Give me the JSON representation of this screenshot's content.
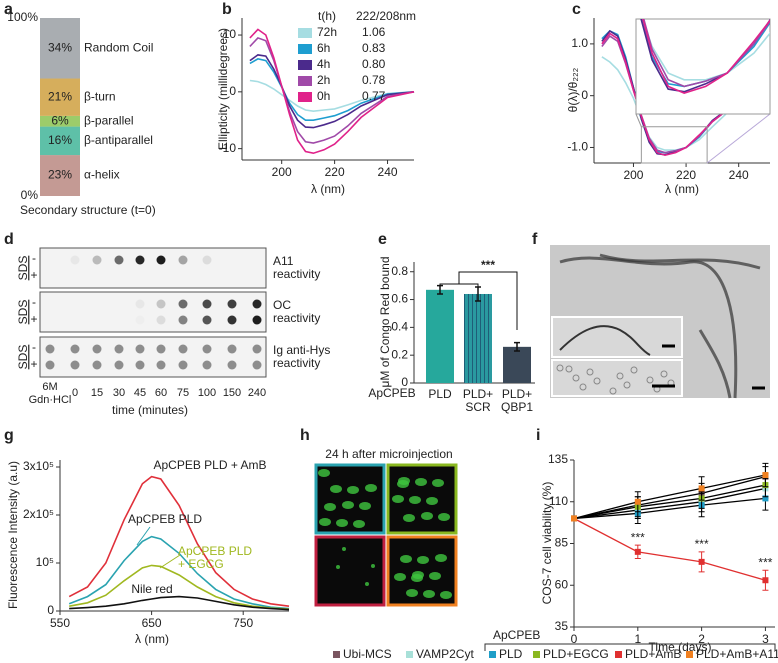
{
  "panel_labels": [
    "a",
    "b",
    "c",
    "d",
    "e",
    "f",
    "g",
    "h",
    "i"
  ],
  "chart_data": [
    {
      "type": "stacked_bar",
      "xlabel": "Secondary structure (t=0)",
      "categories": [
        null
      ],
      "ylim": [
        0,
        100
      ],
      "yticks": [
        {
          "value": 0,
          "label": "0%"
        },
        {
          "value": 100,
          "label": "100%"
        }
      ],
      "series": [
        {
          "name": "α-helix",
          "color": "#c49a94",
          "values": [
            23
          ],
          "value_labels": [
            "23%"
          ]
        },
        {
          "name": "β-antiparallel",
          "color": "#5ec0a8",
          "values": [
            16
          ],
          "value_labels": [
            "16%"
          ]
        },
        {
          "name": "β-parallel",
          "color": "#9ccc6a",
          "values": [
            6
          ],
          "value_labels": [
            "6%"
          ]
        },
        {
          "name": "β-turn",
          "color": "#d6ae5c",
          "values": [
            21
          ],
          "value_labels": [
            "21%"
          ]
        },
        {
          "name": "Random Coil",
          "color": "#a9adb1",
          "values": [
            34
          ],
          "value_labels": [
            "34%"
          ]
        }
      ]
    },
    {
      "type": "line",
      "xlabel": "λ (nm)",
      "ylabel": "Ellipticity (millidegrees)",
      "legend_title": "t(h)",
      "legend_value_title": "222/208nm",
      "x": [
        188,
        191,
        194,
        197,
        200,
        203,
        206,
        209,
        212,
        216,
        220,
        225,
        230,
        240,
        250
      ],
      "xlim": [
        185,
        250
      ],
      "xticks": [
        200,
        220,
        240
      ],
      "ylim": [
        -12,
        13
      ],
      "yticks": [
        -10,
        0,
        10
      ],
      "series": [
        {
          "name": "72h",
          "color": "#a6dde2",
          "ratio": "1.06",
          "values": [
            2,
            1.8,
            1.3,
            0.5,
            -0.5,
            -1.5,
            -2.5,
            -3.2,
            -3.4,
            -3.2,
            -3,
            -2.3,
            -1.5,
            -0.3,
            0
          ]
        },
        {
          "name": "6h",
          "color": "#1e9ed0",
          "ratio": "0.83",
          "values": [
            5,
            5.8,
            5.5,
            3.5,
            0.8,
            -2,
            -4,
            -5,
            -5,
            -4.6,
            -4.2,
            -3.3,
            -2,
            -0.4,
            0
          ]
        },
        {
          "name": "4h",
          "color": "#4b2a8c",
          "ratio": "0.80",
          "values": [
            5.5,
            6.5,
            6.3,
            4,
            1,
            -2.5,
            -5,
            -6.2,
            -6.3,
            -5.8,
            -5.2,
            -4,
            -2.5,
            -0.5,
            0
          ]
        },
        {
          "name": "2h",
          "color": "#a04aa8",
          "ratio": "0.78",
          "values": [
            8,
            9.5,
            9,
            5.5,
            1,
            -3.5,
            -7,
            -8.8,
            -9,
            -8.5,
            -7.8,
            -6,
            -3.8,
            -0.8,
            0
          ]
        },
        {
          "name": "0h",
          "color": "#e0228a",
          "ratio": "0.77",
          "values": [
            9.5,
            11,
            10,
            6,
            1,
            -4,
            -8.5,
            -10.5,
            -10.8,
            -10.2,
            -9.2,
            -7,
            -4.5,
            -1,
            0
          ]
        }
      ]
    },
    {
      "type": "line_inset",
      "xlabel": "λ (nm)",
      "ylabel": "θ(λ)/θ₂₂₂",
      "x": [
        188,
        191,
        194,
        197,
        200,
        203,
        206,
        209,
        212,
        216,
        220,
        225,
        230,
        240,
        250
      ],
      "xlim": [
        185,
        250
      ],
      "xticks": [
        200,
        220,
        240
      ],
      "ylim": [
        -1.3,
        1.5
      ],
      "yticks": [
        {
          "value": -1,
          "label": "-1.0"
        },
        0,
        {
          "value": 1,
          "label": "1.0"
        }
      ],
      "series": [
        {
          "color": "#a6dde2",
          "values": [
            0.75,
            0.65,
            0.5,
            0.25,
            -0.05,
            -0.45,
            -0.8,
            -1.0,
            -1.05,
            -1.05,
            -1.0,
            -0.85,
            -0.6,
            -0.12,
            0
          ]
        },
        {
          "color": "#1e9ed0",
          "values": [
            1.1,
            1.25,
            1.18,
            0.75,
            0.15,
            -0.45,
            -0.88,
            -1.08,
            -1.1,
            -1.06,
            -1.0,
            -0.8,
            -0.5,
            -0.1,
            0
          ]
        },
        {
          "color": "#4b2a8c",
          "values": [
            1.05,
            1.25,
            1.15,
            0.7,
            0.15,
            -0.45,
            -0.9,
            -1.12,
            -1.14,
            -1.08,
            -1.0,
            -0.78,
            -0.48,
            -0.1,
            0
          ]
        },
        {
          "color": "#a04aa8",
          "values": [
            0.95,
            1.15,
            1.05,
            0.62,
            0.1,
            -0.38,
            -0.82,
            -1.05,
            -1.1,
            -1.06,
            -1.0,
            -0.78,
            -0.5,
            -0.1,
            0
          ]
        },
        {
          "color": "#e0228a",
          "values": [
            1.0,
            1.2,
            1.1,
            0.65,
            0.1,
            -0.4,
            -0.85,
            -1.1,
            -1.15,
            -1.1,
            -1.0,
            -0.76,
            -0.5,
            -0.1,
            0
          ]
        }
      ]
    },
    {
      "type": "bar",
      "ylabel": "μM of Congo Red bound",
      "group_label": "ApCPEB",
      "categories": [
        "PLD",
        "PLD+\nSCR",
        "PLD+\nQBP1"
      ],
      "values": [
        0.67,
        0.64,
        0.26
      ],
      "errors": [
        0.03,
        0.05,
        0.03
      ],
      "colors": [
        "#26a89c",
        "#2a9aa0",
        "#3a4858"
      ],
      "hatch": [
        false,
        true,
        false
      ],
      "ylim": [
        0,
        0.87
      ],
      "yticks": [
        0,
        0.2,
        0.4,
        0.6,
        0.8
      ],
      "annotation": "***"
    },
    {
      "type": "line",
      "xlabel": "λ (nm)",
      "ylabel": "Fluorescence Intensity (a.u)",
      "x": [
        560,
        580,
        600,
        620,
        640,
        650,
        660,
        680,
        700,
        720,
        740,
        760,
        780,
        800
      ],
      "xlim": [
        550,
        800
      ],
      "xticks": [
        550,
        650,
        750
      ],
      "ylim": [
        0,
        300000
      ],
      "yticks": [
        0,
        {
          "value": 100000,
          "label": "10⁵"
        },
        {
          "value": 200000,
          "label": "2x10⁵"
        },
        {
          "value": 300000,
          "label": "3x10⁵"
        }
      ],
      "series": [
        {
          "name": "ApCPEB PLD + AmB",
          "color": "#e0303a",
          "values": [
            30000,
            50000,
            100000,
            190000,
            265000,
            280000,
            275000,
            220000,
            140000,
            80000,
            45000,
            25000,
            15000,
            10000
          ]
        },
        {
          "name": "ApCPEB PLD",
          "color": "#2aa3b0",
          "values": [
            15000,
            30000,
            55000,
            105000,
            145000,
            155000,
            150000,
            120000,
            78000,
            45000,
            25000,
            15000,
            8000,
            5000
          ]
        },
        {
          "name": "ApCPEB PLD\n+ EGCG",
          "color": "#a0b820",
          "values": [
            10000,
            17000,
            33000,
            63000,
            90000,
            95000,
            93000,
            75000,
            50000,
            30000,
            17000,
            10000,
            6000,
            4000
          ]
        },
        {
          "name": "Nile red",
          "color": "#111111",
          "values": [
            5000,
            7000,
            10000,
            15000,
            22000,
            25000,
            28000,
            30000,
            27000,
            20000,
            13000,
            8000,
            5000,
            3000
          ]
        }
      ]
    },
    {
      "type": "line_errors",
      "xlabel": "Time (days)",
      "ylabel": "COS-7 cell viability (%)",
      "x": [
        0,
        1,
        2,
        3
      ],
      "xlim": [
        0,
        3.15
      ],
      "xticks": [
        0,
        1,
        2,
        3
      ],
      "ylim": [
        35,
        135
      ],
      "yticks": [
        35,
        60,
        85,
        110,
        135
      ],
      "series": [
        {
          "name": "Ubi-MCS",
          "color": "#7a5560",
          "line_color": "#000000",
          "values": [
            100,
            108,
            115,
            125
          ],
          "errors": [
            0,
            5,
            6,
            6
          ]
        },
        {
          "name": "VAMP2Cyt",
          "color": "#a8e0d8",
          "line_color": "#000000",
          "values": [
            100,
            105,
            110,
            118
          ],
          "errors": [
            0,
            5,
            6,
            6
          ]
        },
        {
          "name": "PLD",
          "group": "ApCPEB",
          "color": "#1e9ec8",
          "line_color": "#000000",
          "values": [
            100,
            103,
            108,
            112
          ],
          "errors": [
            0,
            6,
            7,
            7
          ]
        },
        {
          "name": "PLD+EGCG",
          "group": "ApCPEB",
          "color": "#8ab820",
          "line_color": "#000000",
          "values": [
            100,
            107,
            112,
            120
          ],
          "errors": [
            0,
            6,
            6,
            7
          ]
        },
        {
          "name": "PLD+AmB",
          "group": "ApCPEB",
          "color": "#e03030",
          "line_color": "#e03030",
          "values": [
            100,
            80,
            74,
            63
          ],
          "errors": [
            0,
            4,
            6,
            6
          ],
          "point_labels": [
            null,
            "***",
            "***",
            "***"
          ]
        },
        {
          "name": "PLD+AmB+A11",
          "group": "ApCPEB",
          "color": "#f08020",
          "line_color": "#000000",
          "values": [
            100,
            110,
            118,
            126
          ],
          "errors": [
            0,
            6,
            7,
            7
          ]
        }
      ]
    }
  ],
  "blot": {
    "rows": [
      {
        "sds_label": "SDS",
        "minus": "-",
        "plus": "+",
        "reactivity": "A11\nreactivity"
      },
      {
        "sds_label": "SDS",
        "minus": "-",
        "plus": "+",
        "reactivity": "OC\nreactivity"
      },
      {
        "sds_label": "SDS",
        "minus": "-",
        "plus": "+",
        "reactivity": "Ig anti-Hys\nreactivity"
      }
    ],
    "lane_labels": [
      "6M\nGdn·HCl",
      "0",
      "15",
      "30",
      "45",
      "60",
      "75",
      "100",
      "150",
      "240"
    ],
    "xlabel": "time (minutes)"
  },
  "microinjection": {
    "title": "24 h after microinjection"
  }
}
